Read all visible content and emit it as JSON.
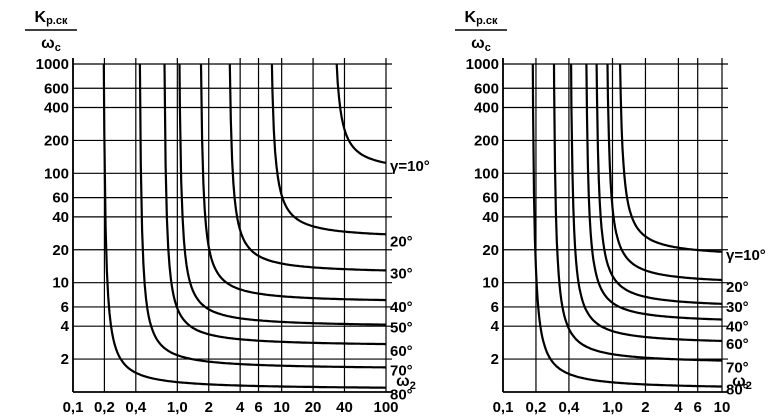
{
  "chart_data": [
    {
      "type": "line",
      "xscale": "log",
      "yscale": "log",
      "xlim": [
        0.1,
        100
      ],
      "ylim": [
        1,
        1000
      ],
      "x_ticks": [
        0.1,
        0.2,
        0.4,
        1.0,
        2,
        4,
        6,
        10,
        20,
        40,
        100
      ],
      "x_tick_labels": [
        "0,1",
        "0,2",
        "0,4",
        "1,0",
        "2",
        "4",
        "6",
        "10",
        "20",
        "40",
        "100"
      ],
      "y_ticks": [
        1000,
        600,
        400,
        200,
        100,
        60,
        40,
        20,
        10,
        6,
        4,
        2
      ],
      "y_tick_labels": [
        "1000",
        "600",
        "400",
        "200",
        "100",
        "60",
        "40",
        "20",
        "10",
        "6",
        "4",
        "2"
      ],
      "ylabel": "Kр.ск / ωс",
      "ylabel_parts": {
        "num_main": "K",
        "num_sub": "р.ск",
        "den_main": "ω",
        "den_sub": "с"
      },
      "xlabel": "ω2",
      "xlabel_parts": {
        "main": "ω",
        "sub": "2"
      },
      "grid": true,
      "series": [
        {
          "label": "γ=10°",
          "x_asym": 30,
          "y_asym": 100
        },
        {
          "label": "20°",
          "x_asym": 7.5,
          "y_asym": 25
        },
        {
          "label": "30°",
          "x_asym": 3.0,
          "y_asym": 12
        },
        {
          "label": "40°",
          "x_asym": 1.6,
          "y_asym": 6.5
        },
        {
          "label": "50°",
          "x_asym": 1.0,
          "y_asym": 3.9
        },
        {
          "label": "60°",
          "x_asym": 0.72,
          "y_asym": 2.6
        },
        {
          "label": "70°",
          "x_asym": 0.42,
          "y_asym": 1.6
        },
        {
          "label": "80°",
          "x_asym": 0.19,
          "y_asym": 1.05
        }
      ]
    },
    {
      "type": "line",
      "xscale": "log",
      "yscale": "log",
      "xlim": [
        0.1,
        10
      ],
      "ylim": [
        1,
        1000
      ],
      "x_ticks": [
        0.1,
        0.2,
        0.4,
        1.0,
        2,
        4,
        6,
        10
      ],
      "x_tick_labels": [
        "0,1",
        "0,2",
        "0,4",
        "1,0",
        "2",
        "4",
        "6",
        "10"
      ],
      "y_ticks": [
        1000,
        600,
        400,
        200,
        100,
        60,
        40,
        20,
        10,
        6,
        4,
        2
      ],
      "y_tick_labels": [
        "1000",
        "600",
        "400",
        "200",
        "100",
        "60",
        "40",
        "20",
        "10",
        "6",
        "4",
        "2"
      ],
      "ylabel": "Kр.ск / ωс",
      "ylabel_parts": {
        "num_main": "K",
        "num_sub": "р.ск",
        "den_main": "ω",
        "den_sub": "с"
      },
      "xlabel": "ω2",
      "xlabel_parts": {
        "main": "ω",
        "sub": "2"
      },
      "grid": true,
      "series": [
        {
          "label": "γ=10°",
          "x_asym": 1.1,
          "y_asym": 17
        },
        {
          "label": "20°",
          "x_asym": 0.85,
          "y_asym": 9.5
        },
        {
          "label": "30°",
          "x_asym": 0.68,
          "y_asym": 5.8
        },
        {
          "label": "40°",
          "x_asym": 0.55,
          "y_asym": 4.2
        },
        {
          "label": "60°",
          "x_asym": 0.4,
          "y_asym": 2.7
        },
        {
          "label": "70°",
          "x_asym": 0.28,
          "y_asym": 1.8
        },
        {
          "label": "80°",
          "x_asym": 0.18,
          "y_asym": 1.05
        }
      ]
    }
  ]
}
